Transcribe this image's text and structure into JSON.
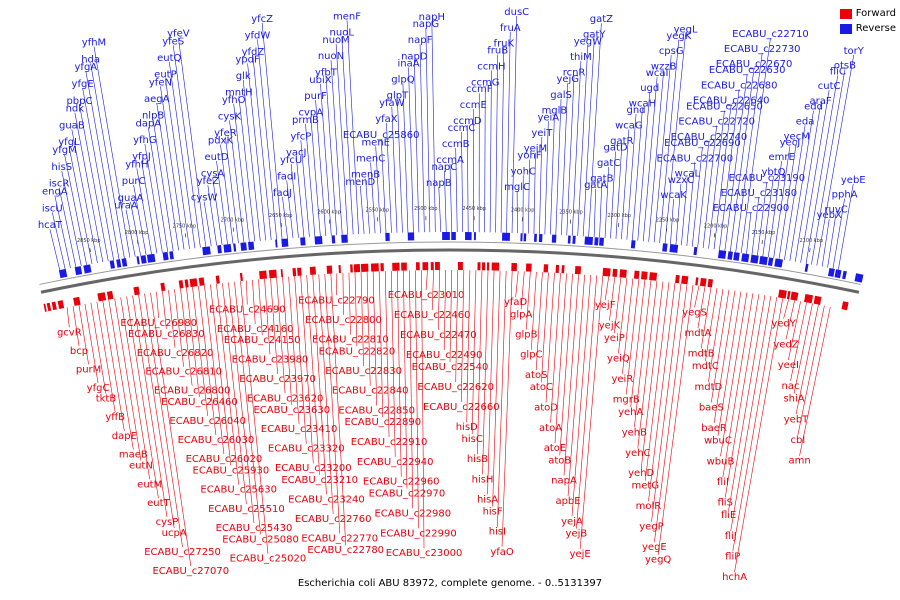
{
  "caption": "Escherichia coli ABU 83972, complete genome. - 0..5131397",
  "legend": [
    {
      "label": "Forward",
      "color": "#e8000b"
    },
    {
      "label": "Reverse",
      "color": "#1a1ae6"
    }
  ],
  "colors": {
    "forward": "#e8000b",
    "reverse": "#1a1ae6",
    "backbone": "#888888"
  },
  "kbp_labels": [
    "2850 kbp",
    "2800 kbp",
    "2750 kbp",
    "2700 kbp",
    "2650 kbp",
    "2600 kbp",
    "2550 kbp",
    "2500 kbp",
    "2450 kbp",
    "2400 kbp",
    "2350 kbp",
    "2300 kbp",
    "2250 kbp",
    "2200 kbp",
    "2150 kbp",
    "2100 kbp"
  ],
  "reverse_labels": [
    "hcaT",
    "iscU",
    "engA",
    "iscR",
    "hisS",
    "yfgM",
    "yfgL",
    "guaB",
    "ndk",
    "pbpC",
    "yfgE",
    "yfgA",
    "hda",
    "yfhM",
    "uraA",
    "guaA",
    "purC",
    "yfhH",
    "yfpJ",
    "yfhG",
    "dapA",
    "nlpB",
    "aegA",
    "yfeN",
    "eutP",
    "eutQ",
    "yfeS",
    "yfeV",
    "cysW",
    "yfeZ",
    "cysA",
    "eutD",
    "pdxK",
    "yfeR",
    "cysK",
    "yfhO",
    "mntH",
    "glk",
    "ypdF",
    "yfdZ",
    "yfdW",
    "yfcZ",
    "fadJ",
    "fadI",
    "yfcU",
    "vacJ",
    "yfcP",
    "prmB",
    "cvpA",
    "purF",
    "ubiX",
    "yfbT",
    "nuoN",
    "nuoM",
    "nuoL",
    "menF",
    "menD",
    "menB",
    "menC",
    "menE",
    "ECABU_c25860",
    "yfaX",
    "yfaW",
    "glpT",
    "glpQ",
    "inaA",
    "napD",
    "napF",
    "napG",
    "napH",
    "napB",
    "napC",
    "ccmA",
    "ccmB",
    "ccmC",
    "ccmD",
    "ccmE",
    "ccmF",
    "ccmG",
    "ccmH",
    "fruB",
    "fruK",
    "fruA",
    "dusC",
    "mglC",
    "yohC",
    "yohF",
    "yeiM",
    "yeiT",
    "yeiA",
    "mglB",
    "galS",
    "yejG",
    "rcnR",
    "thiM",
    "yegW",
    "gatY",
    "gatZ",
    "gatA",
    "gatB",
    "gatC",
    "gatD",
    "gatR",
    "wcaG",
    "gnd",
    "wcaH",
    "ugd",
    "wcaI",
    "wzzB",
    "cpsG",
    "yegK",
    "yegL",
    "wcaK",
    "wzxC",
    "wcaL",
    "ECABU_c22700",
    "ECABU_c22690",
    "ECABU_c22740",
    "ECABU_c22720",
    "ECABU_c22650",
    "ECABU_c22640",
    "ECABU_c22680",
    "ECABU_c22630",
    "ECABU_c22670",
    "ECABU_c22730",
    "ECABU_c22710",
    "ECABU_c22900",
    "ECABU_c23180",
    "ECABU_c23190",
    "ybtQ",
    "emrE",
    "yecJ",
    "yecM",
    "eda",
    "edd",
    "araF",
    "cutC",
    "fliC",
    "otsB",
    "torY",
    "yebX",
    "ruvC",
    "pphA",
    "yebE"
  ],
  "forward_labels": [
    "gcvR",
    "bcp",
    "purM",
    "yfgC",
    "tktB",
    "yffB",
    "dapE",
    "maeB",
    "eutN",
    "eutM",
    "eutT",
    "cysP",
    "ucpA",
    "ECABU_c27250",
    "ECABU_c27070",
    "ECABU_c26980",
    "ECABU_c26830",
    "ECABU_c26820",
    "ECABU_c26810",
    "ECABU_c26800",
    "ECABU_c26460",
    "ECABU_c26040",
    "ECABU_c26030",
    "ECABU_c26020",
    "ECABU_c25930",
    "ECABU_c25630",
    "ECABU_c25510",
    "ECABU_c25430",
    "ECABU_c25080",
    "ECABU_c25020",
    "ECABU_c24690",
    "ECABU_c24160",
    "ECABU_c24150",
    "ECABU_c23980",
    "ECABU_c23970",
    "ECABU_c23620",
    "ECABU_c23630",
    "ECABU_c23410",
    "ECABU_c23320",
    "ECABU_c23200",
    "ECABU_c23210",
    "ECABU_c23240",
    "ECABU_c22760",
    "ECABU_c22770",
    "ECABU_c22780",
    "ECABU_c22790",
    "ECABU_c22800",
    "ECABU_c22810",
    "ECABU_c22820",
    "ECABU_c22830",
    "ECABU_c22840",
    "ECABU_c22850",
    "ECABU_c22890",
    "ECABU_c22910",
    "ECABU_c22940",
    "ECABU_c22960",
    "ECABU_c22970",
    "ECABU_c22980",
    "ECABU_c22990",
    "ECABU_c23000",
    "ECABU_c23010",
    "ECABU_c22460",
    "ECABU_c22470",
    "ECABU_c22490",
    "ECABU_c22540",
    "ECABU_c22620",
    "ECABU_c22660",
    "hisD",
    "hisC",
    "hisB",
    "hisH",
    "hisA",
    "hisF",
    "hisI",
    "yfaO",
    "yfaD",
    "glpA",
    "glpB",
    "glpC",
    "atoS",
    "atoC",
    "atoD",
    "atoA",
    "atoE",
    "atoB",
    "napA",
    "apbE",
    "yejA",
    "yejB",
    "yejE",
    "yejF",
    "yejK",
    "yeiP",
    "yeiQ",
    "yeiR",
    "mgrB",
    "yehA",
    "yehB",
    "yehC",
    "yehD",
    "metG",
    "molR",
    "yegP",
    "yegE",
    "yegQ",
    "yegS",
    "mdtA",
    "mdtB",
    "mdtC",
    "mdtD",
    "baeS",
    "baeR",
    "wbuC",
    "wbuB",
    "fliI",
    "fliS",
    "fliE",
    "fliJ",
    "fliP",
    "hchA",
    "yedY",
    "yedZ",
    "yeeI",
    "nac",
    "shiA",
    "yebT",
    "cbl",
    "amn"
  ]
}
